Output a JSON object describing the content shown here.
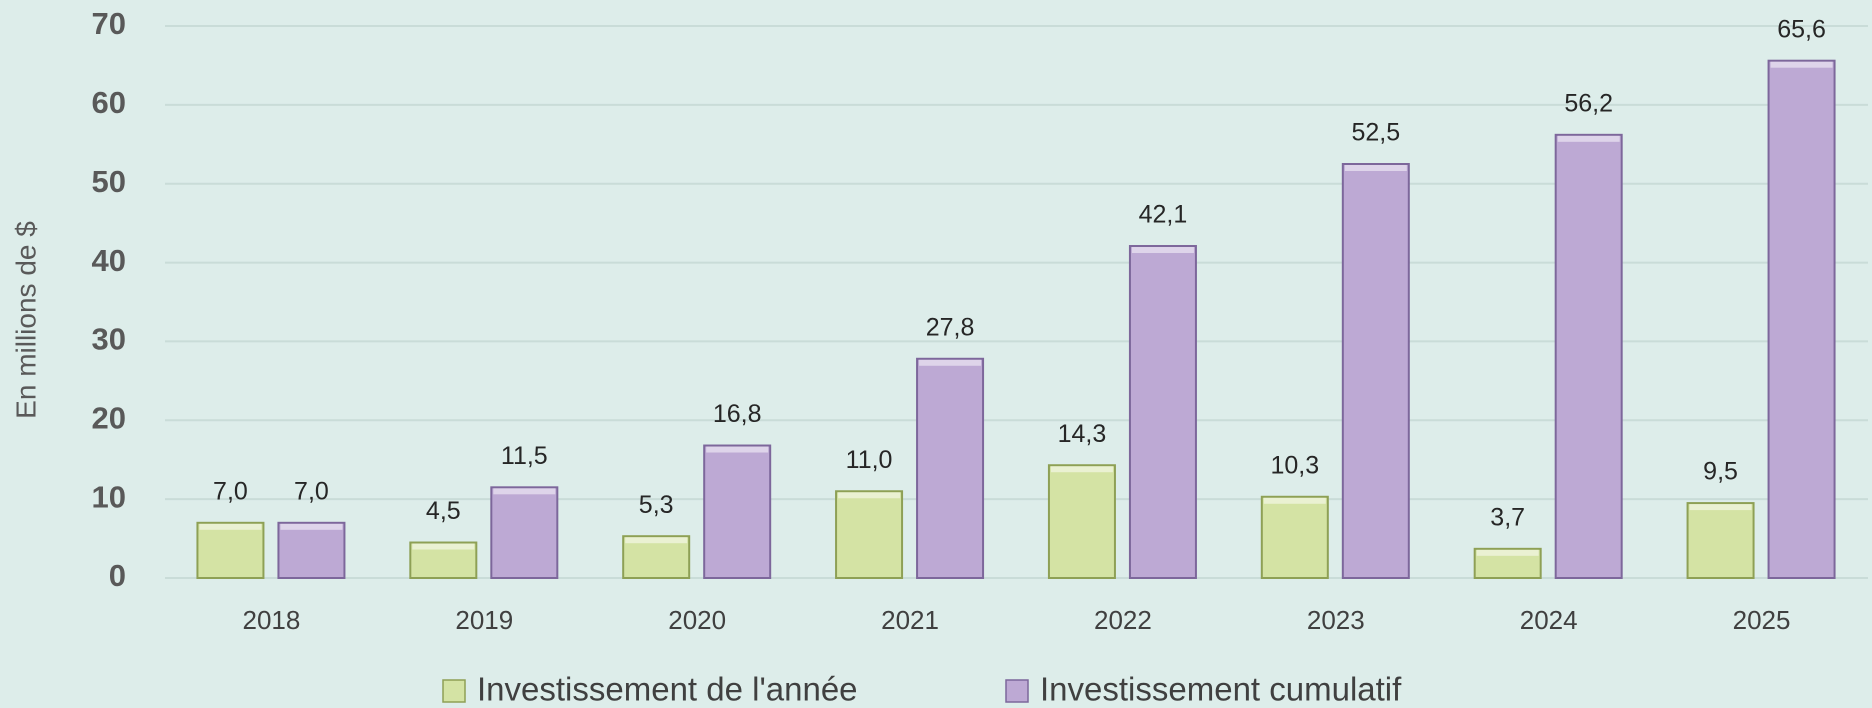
{
  "chart_data": {
    "type": "bar",
    "y_label": "En millions de $",
    "categories": [
      "2018",
      "2019",
      "2020",
      "2021",
      "2022",
      "2023",
      "2024",
      "2025"
    ],
    "series": [
      {
        "name": "Investissement de l'année",
        "color": "#d4e3a4",
        "values": [
          7.0,
          4.5,
          5.3,
          11.0,
          14.3,
          10.3,
          3.7,
          9.5
        ],
        "value_labels": [
          "7,0",
          "4,5",
          "5,3",
          "11,0",
          "14,3",
          "10,3",
          "3,7",
          "9,5"
        ]
      },
      {
        "name": "Investissement cumulatif",
        "color": "#bda9d4",
        "values": [
          7.0,
          11.5,
          16.8,
          27.8,
          42.1,
          52.5,
          56.2,
          65.6
        ],
        "value_labels": [
          "7,0",
          "11,5",
          "16,8",
          "27,8",
          "42,1",
          "52,5",
          "56,2",
          "65,6"
        ]
      }
    ],
    "ylim": [
      0,
      70
    ],
    "yticks": [
      0,
      10,
      20,
      30,
      40,
      50,
      60,
      70
    ],
    "grid": true,
    "legend": "bottom"
  }
}
